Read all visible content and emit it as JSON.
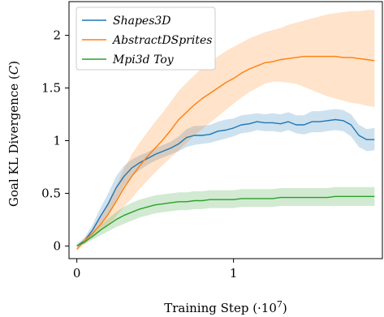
{
  "chart_data": {
    "type": "line",
    "title": "",
    "xlabel_text": "Training Step (·10",
    "xlabel_sup": "7",
    "xlabel_end": ")",
    "ylabel_text": "Goal KL Divergence (",
    "ylabel_var": "C",
    "ylabel_end": ")",
    "xlim": [
      -0.05,
      1.95
    ],
    "ylim": [
      -0.12,
      2.32
    ],
    "xticks": [
      0,
      1,
      2
    ],
    "xtick_labels": [
      "0",
      "1",
      "2"
    ],
    "yticks": [
      0,
      0.5,
      1,
      1.5,
      2
    ],
    "ytick_labels": [
      "0",
      "0.5",
      "1",
      "1.5",
      "2"
    ],
    "grid": false,
    "legend_position": "top-left",
    "series": [
      {
        "name": "Shapes3D",
        "color": "#1f77b4",
        "x": [
          0,
          0.05,
          0.1,
          0.15,
          0.2,
          0.25,
          0.3,
          0.35,
          0.4,
          0.45,
          0.5,
          0.55,
          0.6,
          0.65,
          0.7,
          0.75,
          0.8,
          0.85,
          0.9,
          0.95,
          1.0,
          1.05,
          1.1,
          1.15,
          1.2,
          1.25,
          1.3,
          1.35,
          1.4,
          1.45,
          1.5,
          1.55,
          1.6,
          1.65,
          1.7,
          1.75,
          1.8,
          1.85,
          1.9
        ],
        "y": [
          0.0,
          0.05,
          0.15,
          0.28,
          0.4,
          0.55,
          0.66,
          0.74,
          0.79,
          0.83,
          0.87,
          0.9,
          0.93,
          0.97,
          1.03,
          1.05,
          1.05,
          1.06,
          1.09,
          1.1,
          1.12,
          1.15,
          1.16,
          1.18,
          1.17,
          1.17,
          1.16,
          1.18,
          1.15,
          1.15,
          1.18,
          1.18,
          1.19,
          1.2,
          1.19,
          1.15,
          1.05,
          1.01,
          1.01
        ],
        "lower": [
          0.0,
          0.02,
          0.1,
          0.2,
          0.3,
          0.43,
          0.57,
          0.66,
          0.72,
          0.77,
          0.81,
          0.84,
          0.87,
          0.9,
          0.94,
          0.96,
          0.97,
          0.98,
          1.0,
          1.02,
          1.04,
          1.07,
          1.08,
          1.1,
          1.09,
          1.09,
          1.08,
          1.1,
          1.07,
          1.06,
          1.08,
          1.08,
          1.09,
          1.1,
          1.09,
          1.04,
          0.94,
          0.9,
          0.91
        ],
        "upper": [
          0.02,
          0.08,
          0.2,
          0.36,
          0.5,
          0.66,
          0.76,
          0.82,
          0.86,
          0.89,
          0.93,
          0.96,
          0.99,
          1.04,
          1.11,
          1.14,
          1.14,
          1.15,
          1.18,
          1.2,
          1.21,
          1.24,
          1.25,
          1.26,
          1.25,
          1.26,
          1.25,
          1.27,
          1.24,
          1.24,
          1.28,
          1.28,
          1.29,
          1.3,
          1.29,
          1.25,
          1.15,
          1.11,
          1.12
        ]
      },
      {
        "name": "AbstractDSprites",
        "color": "#ff7f0e",
        "x": [
          0,
          0.05,
          0.1,
          0.15,
          0.2,
          0.25,
          0.3,
          0.35,
          0.4,
          0.45,
          0.5,
          0.55,
          0.6,
          0.65,
          0.7,
          0.75,
          0.8,
          0.85,
          0.9,
          0.95,
          1.0,
          1.05,
          1.1,
          1.15,
          1.2,
          1.25,
          1.3,
          1.35,
          1.4,
          1.45,
          1.5,
          1.55,
          1.6,
          1.65,
          1.7,
          1.75,
          1.8,
          1.85,
          1.9
        ],
        "y": [
          -0.03,
          0.05,
          0.12,
          0.2,
          0.3,
          0.42,
          0.55,
          0.66,
          0.76,
          0.85,
          0.93,
          1.01,
          1.1,
          1.2,
          1.27,
          1.34,
          1.4,
          1.45,
          1.5,
          1.55,
          1.59,
          1.64,
          1.68,
          1.71,
          1.74,
          1.75,
          1.77,
          1.78,
          1.79,
          1.8,
          1.8,
          1.8,
          1.8,
          1.8,
          1.79,
          1.79,
          1.78,
          1.77,
          1.76
        ],
        "lower": [
          -0.05,
          0.02,
          0.08,
          0.14,
          0.2,
          0.28,
          0.37,
          0.45,
          0.54,
          0.62,
          0.7,
          0.77,
          0.84,
          0.91,
          0.98,
          1.05,
          1.11,
          1.17,
          1.23,
          1.29,
          1.35,
          1.41,
          1.46,
          1.5,
          1.54,
          1.56,
          1.56,
          1.55,
          1.54,
          1.51,
          1.48,
          1.45,
          1.42,
          1.4,
          1.38,
          1.36,
          1.35,
          1.33,
          1.32
        ],
        "upper": [
          -0.01,
          0.08,
          0.16,
          0.27,
          0.42,
          0.57,
          0.73,
          0.87,
          0.98,
          1.08,
          1.18,
          1.27,
          1.37,
          1.47,
          1.55,
          1.62,
          1.69,
          1.75,
          1.8,
          1.85,
          1.89,
          1.93,
          1.97,
          2.0,
          2.03,
          2.05,
          2.07,
          2.1,
          2.12,
          2.14,
          2.16,
          2.18,
          2.2,
          2.21,
          2.22,
          2.23,
          2.23,
          2.24,
          2.24
        ]
      },
      {
        "name": "Mpi3d Toy",
        "color": "#2ca02c",
        "x": [
          0,
          0.05,
          0.1,
          0.15,
          0.2,
          0.25,
          0.3,
          0.35,
          0.4,
          0.45,
          0.5,
          0.55,
          0.6,
          0.65,
          0.7,
          0.75,
          0.8,
          0.85,
          0.9,
          0.95,
          1.0,
          1.05,
          1.1,
          1.15,
          1.2,
          1.25,
          1.3,
          1.35,
          1.4,
          1.45,
          1.5,
          1.55,
          1.6,
          1.65,
          1.7,
          1.75,
          1.8,
          1.85,
          1.9
        ],
        "y": [
          0.0,
          0.04,
          0.09,
          0.15,
          0.2,
          0.25,
          0.29,
          0.32,
          0.35,
          0.37,
          0.39,
          0.4,
          0.41,
          0.42,
          0.42,
          0.43,
          0.43,
          0.44,
          0.44,
          0.44,
          0.44,
          0.45,
          0.45,
          0.45,
          0.45,
          0.45,
          0.46,
          0.46,
          0.46,
          0.46,
          0.46,
          0.46,
          0.46,
          0.47,
          0.47,
          0.47,
          0.47,
          0.47,
          0.47
        ],
        "lower": [
          -0.01,
          0.02,
          0.06,
          0.1,
          0.14,
          0.18,
          0.21,
          0.24,
          0.27,
          0.29,
          0.31,
          0.32,
          0.33,
          0.34,
          0.34,
          0.35,
          0.35,
          0.36,
          0.36,
          0.36,
          0.36,
          0.37,
          0.37,
          0.37,
          0.37,
          0.37,
          0.38,
          0.38,
          0.38,
          0.38,
          0.38,
          0.38,
          0.38,
          0.38,
          0.38,
          0.38,
          0.38,
          0.38,
          0.38
        ],
        "upper": [
          0.01,
          0.06,
          0.12,
          0.2,
          0.26,
          0.32,
          0.37,
          0.41,
          0.44,
          0.46,
          0.48,
          0.49,
          0.5,
          0.51,
          0.51,
          0.52,
          0.52,
          0.53,
          0.53,
          0.53,
          0.53,
          0.54,
          0.54,
          0.54,
          0.54,
          0.54,
          0.55,
          0.55,
          0.55,
          0.55,
          0.55,
          0.55,
          0.55,
          0.56,
          0.56,
          0.56,
          0.56,
          0.56,
          0.56
        ]
      }
    ]
  }
}
